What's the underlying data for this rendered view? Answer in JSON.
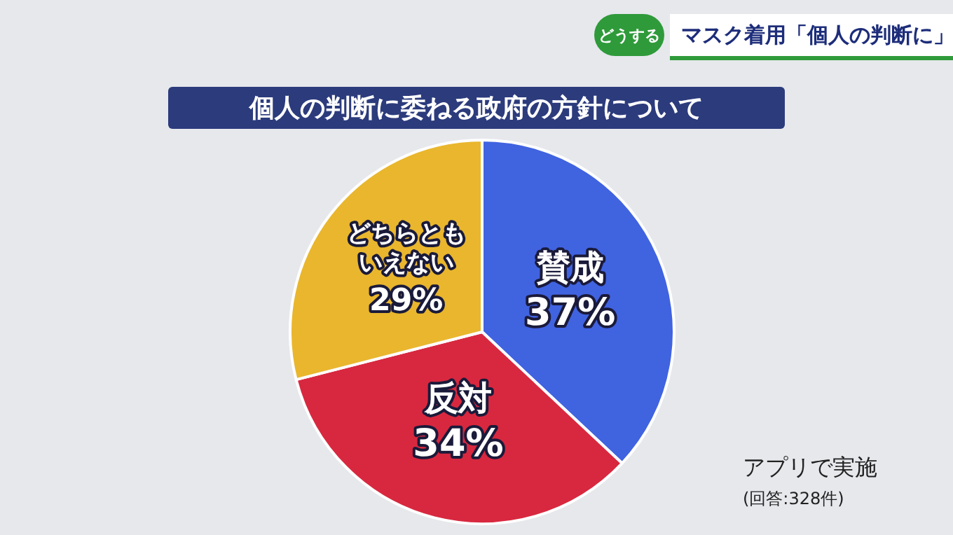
{
  "chart_data": {
    "type": "pie",
    "title": "個人の判断に委ねる政府の方針について",
    "subtitle": "マスク着用「個人の判断に」",
    "annotations": [
      "どうする",
      "アプリで実施",
      "(回答:328件)"
    ],
    "categories": [
      "賛成",
      "反対",
      "どちらともいえない"
    ],
    "values": [
      37,
      34,
      29
    ],
    "value_labels": [
      "37%",
      "34%",
      "29%"
    ],
    "colors": [
      "#4063e0",
      "#d8283f",
      "#e9b62d"
    ],
    "legend": false
  }
}
